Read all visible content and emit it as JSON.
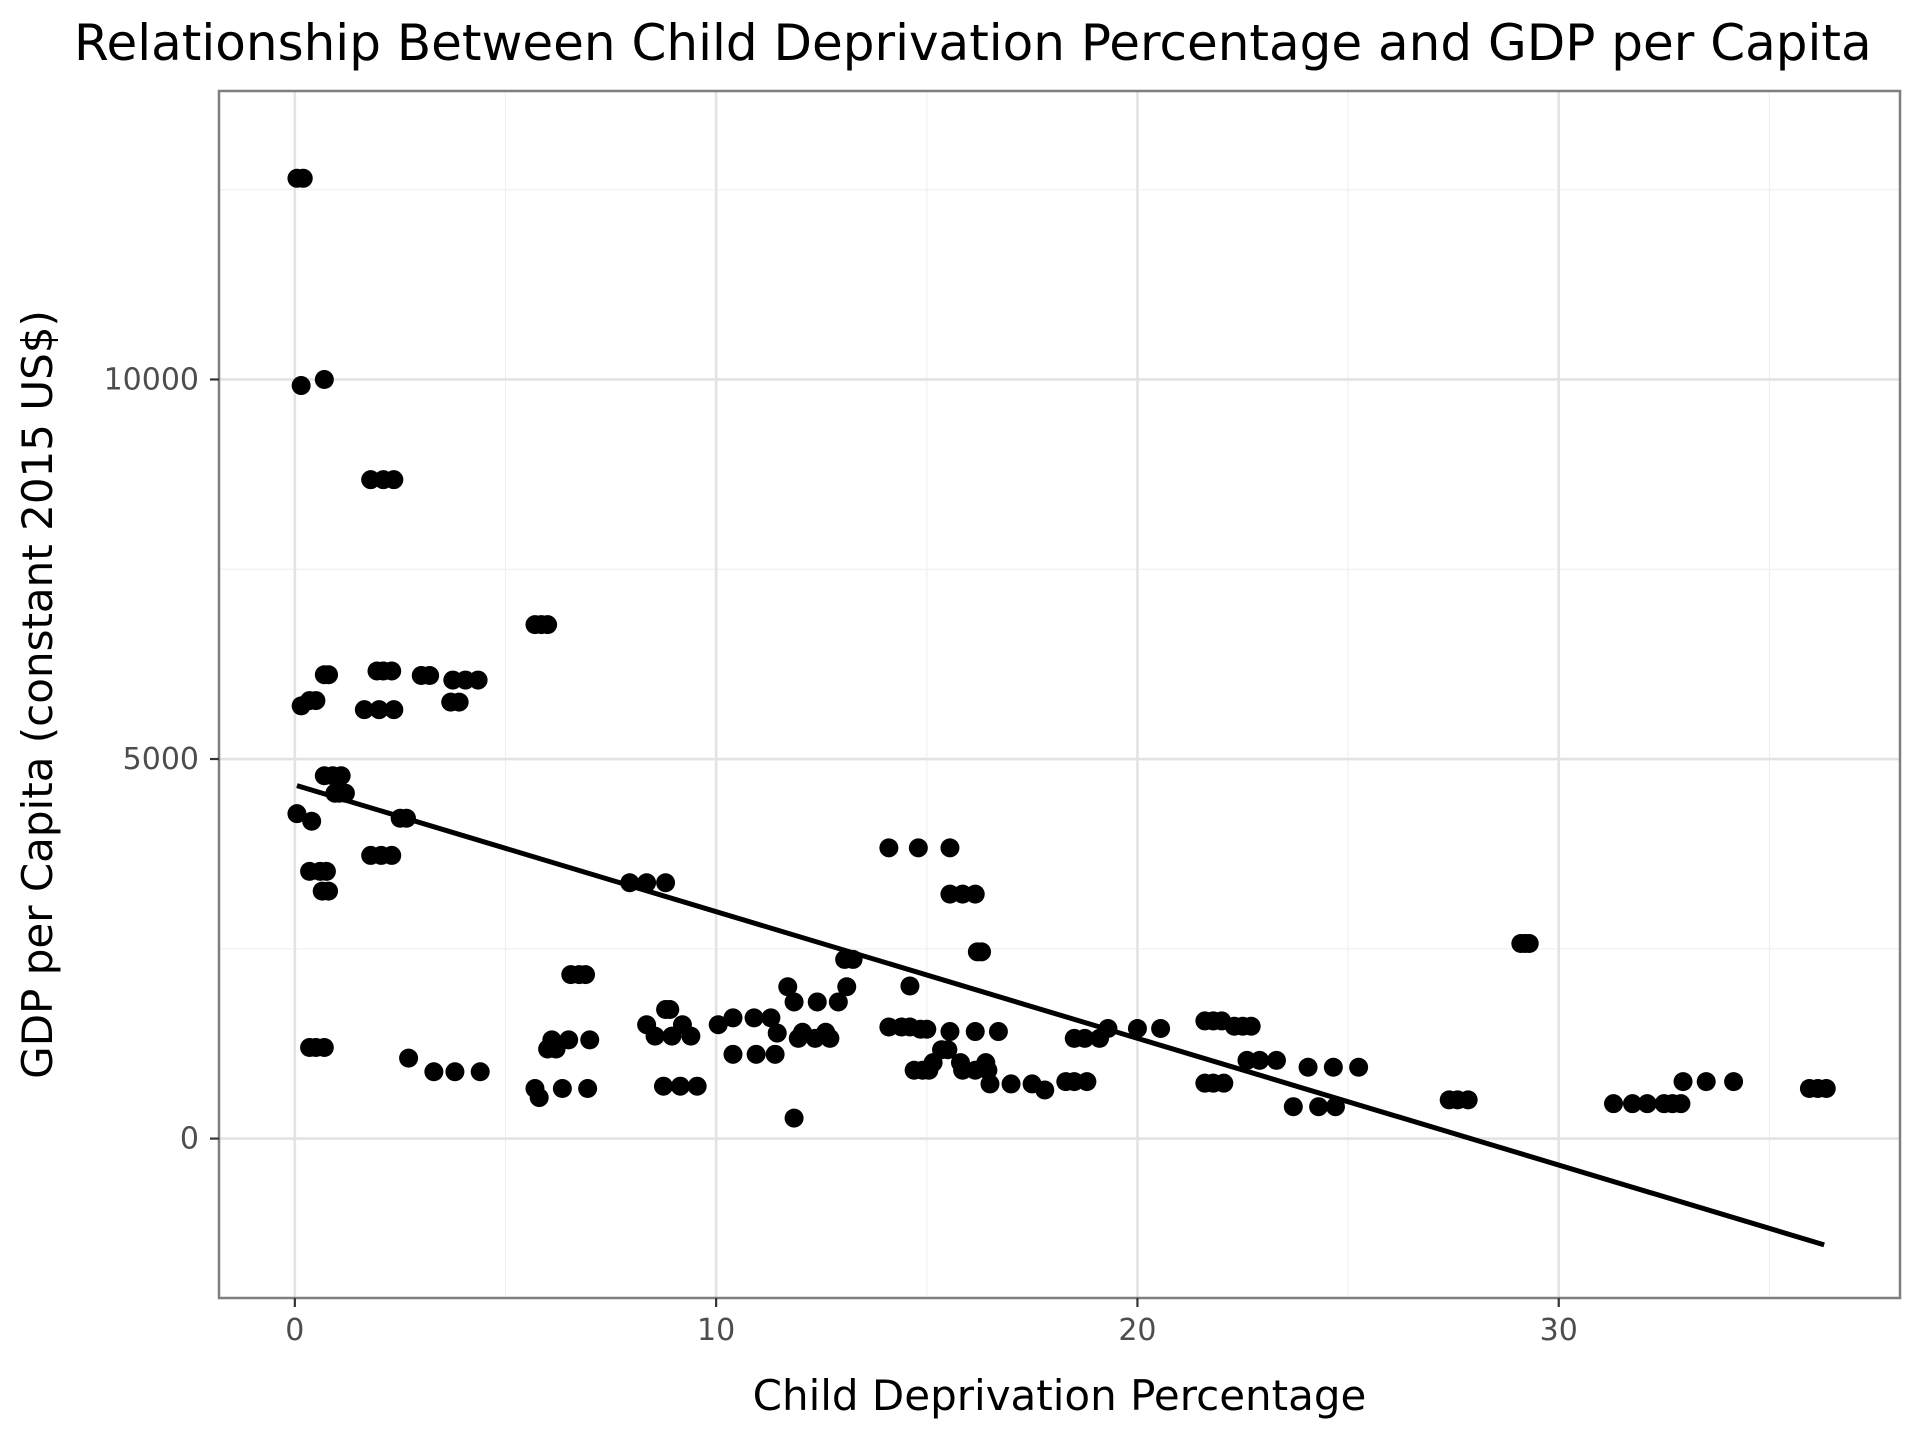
{
  "chart_data": {
    "type": "scatter",
    "title": "Relationship Between Child Deprivation Percentage and GDP per Capita",
    "xlabel": "Child Deprivation Percentage",
    "ylabel": "GDP per Capita (constant 2015 US$)",
    "xlim": [
      -1.8,
      38.1
    ],
    "ylim": [
      -2100,
      13800
    ],
    "x_ticks": [
      0,
      10,
      20,
      30
    ],
    "x_tick_labels": [
      "0",
      "10",
      "20",
      "30"
    ],
    "y_ticks": [
      0,
      5000,
      10000
    ],
    "y_tick_labels": [
      "0",
      "5000",
      "10000"
    ],
    "x_minor_ticks": [
      5,
      15,
      25,
      35
    ],
    "y_minor_ticks": [
      2500,
      7500,
      12500
    ],
    "grid": true,
    "legend": "none",
    "point_color": "#000000",
    "trend_line": {
      "type": "linear",
      "color": "#000000",
      "x": [
        0.05,
        36.3
      ],
      "y": [
        4650,
        -1400
      ]
    },
    "points": [
      [
        0.05,
        12650
      ],
      [
        0.2,
        12650
      ],
      [
        0.15,
        9920
      ],
      [
        0.7,
        10000
      ],
      [
        1.8,
        8680
      ],
      [
        2.1,
        8680
      ],
      [
        2.35,
        8680
      ],
      [
        0.15,
        5700
      ],
      [
        0.35,
        5770
      ],
      [
        0.5,
        5770
      ],
      [
        0.7,
        6110
      ],
      [
        0.8,
        6110
      ],
      [
        1.65,
        5650
      ],
      [
        2.0,
        5650
      ],
      [
        2.35,
        5650
      ],
      [
        1.95,
        6160
      ],
      [
        2.1,
        6160
      ],
      [
        2.3,
        6160
      ],
      [
        3.0,
        6100
      ],
      [
        3.2,
        6100
      ],
      [
        3.7,
        5750
      ],
      [
        3.9,
        5750
      ],
      [
        3.75,
        6040
      ],
      [
        4.05,
        6040
      ],
      [
        4.35,
        6040
      ],
      [
        5.7,
        6770
      ],
      [
        5.85,
        6770
      ],
      [
        6.0,
        6770
      ],
      [
        0.7,
        4780
      ],
      [
        0.9,
        4780
      ],
      [
        1.1,
        4780
      ],
      [
        0.95,
        4550
      ],
      [
        1.05,
        4550
      ],
      [
        1.2,
        4550
      ],
      [
        0.05,
        4280
      ],
      [
        0.4,
        4180
      ],
      [
        2.5,
        4220
      ],
      [
        2.65,
        4220
      ],
      [
        0.35,
        3520
      ],
      [
        0.6,
        3520
      ],
      [
        0.75,
        3520
      ],
      [
        0.65,
        3260
      ],
      [
        0.8,
        3260
      ],
      [
        1.8,
        3730
      ],
      [
        2.05,
        3730
      ],
      [
        2.3,
        3730
      ],
      [
        0.35,
        1200
      ],
      [
        0.5,
        1200
      ],
      [
        0.7,
        1200
      ],
      [
        2.7,
        1060
      ],
      [
        3.3,
        880
      ],
      [
        3.8,
        880
      ],
      [
        4.4,
        880
      ],
      [
        5.7,
        660
      ],
      [
        5.8,
        540
      ],
      [
        6.0,
        1180
      ],
      [
        6.1,
        1300
      ],
      [
        6.2,
        1180
      ],
      [
        6.35,
        660
      ],
      [
        6.5,
        1300
      ],
      [
        6.55,
        2160
      ],
      [
        6.75,
        2160
      ],
      [
        6.9,
        2160
      ],
      [
        6.95,
        660
      ],
      [
        7.0,
        1300
      ],
      [
        7.95,
        3370
      ],
      [
        8.35,
        3370
      ],
      [
        8.8,
        3370
      ],
      [
        8.35,
        1500
      ],
      [
        8.55,
        1350
      ],
      [
        8.8,
        1700
      ],
      [
        8.9,
        1700
      ],
      [
        8.95,
        1350
      ],
      [
        8.75,
        690
      ],
      [
        9.15,
        690
      ],
      [
        9.55,
        690
      ],
      [
        9.2,
        1500
      ],
      [
        9.4,
        1350
      ],
      [
        10.05,
        1500
      ],
      [
        10.4,
        1110
      ],
      [
        10.95,
        1110
      ],
      [
        11.4,
        1110
      ],
      [
        10.4,
        1590
      ],
      [
        10.9,
        1590
      ],
      [
        11.3,
        1590
      ],
      [
        11.45,
        1390
      ],
      [
        11.7,
        2000
      ],
      [
        11.85,
        1800
      ],
      [
        11.85,
        270
      ],
      [
        11.95,
        1320
      ],
      [
        12.05,
        1400
      ],
      [
        12.35,
        1320
      ],
      [
        12.4,
        1800
      ],
      [
        12.6,
        1400
      ],
      [
        12.7,
        1320
      ],
      [
        12.9,
        1800
      ],
      [
        13.05,
        2360
      ],
      [
        13.25,
        2360
      ],
      [
        13.1,
        2000
      ],
      [
        14.1,
        3830
      ],
      [
        14.8,
        3830
      ],
      [
        15.55,
        3830
      ],
      [
        14.1,
        1470
      ],
      [
        14.4,
        1470
      ],
      [
        14.6,
        1470
      ],
      [
        14.6,
        2010
      ],
      [
        14.7,
        900
      ],
      [
        14.85,
        1440
      ],
      [
        14.9,
        900
      ],
      [
        15.0,
        1440
      ],
      [
        15.05,
        900
      ],
      [
        15.15,
        1000
      ],
      [
        15.35,
        1170
      ],
      [
        15.5,
        1170
      ],
      [
        15.55,
        1410
      ],
      [
        15.55,
        3220
      ],
      [
        15.85,
        3220
      ],
      [
        16.15,
        3220
      ],
      [
        15.8,
        1000
      ],
      [
        15.85,
        900
      ],
      [
        16.15,
        1410
      ],
      [
        16.15,
        900
      ],
      [
        16.2,
        2460
      ],
      [
        16.3,
        2460
      ],
      [
        16.4,
        1000
      ],
      [
        16.45,
        900
      ],
      [
        16.5,
        720
      ],
      [
        16.7,
        1410
      ],
      [
        17.0,
        720
      ],
      [
        17.5,
        720
      ],
      [
        17.8,
        640
      ],
      [
        18.3,
        750
      ],
      [
        18.5,
        750
      ],
      [
        18.8,
        750
      ],
      [
        18.5,
        1320
      ],
      [
        18.75,
        1320
      ],
      [
        19.1,
        1320
      ],
      [
        19.3,
        1450
      ],
      [
        20.0,
        1450
      ],
      [
        20.55,
        1450
      ],
      [
        21.6,
        1550
      ],
      [
        21.8,
        1550
      ],
      [
        22.0,
        1550
      ],
      [
        21.6,
        730
      ],
      [
        21.8,
        730
      ],
      [
        22.05,
        730
      ],
      [
        22.3,
        1480
      ],
      [
        22.5,
        1480
      ],
      [
        22.7,
        1480
      ],
      [
        22.6,
        1030
      ],
      [
        22.9,
        1030
      ],
      [
        23.3,
        1030
      ],
      [
        23.7,
        420
      ],
      [
        24.05,
        940
      ],
      [
        24.3,
        420
      ],
      [
        24.65,
        940
      ],
      [
        24.7,
        420
      ],
      [
        25.25,
        940
      ],
      [
        27.4,
        510
      ],
      [
        27.6,
        510
      ],
      [
        27.85,
        510
      ],
      [
        29.1,
        2570
      ],
      [
        29.2,
        2570
      ],
      [
        29.3,
        2570
      ],
      [
        31.3,
        460
      ],
      [
        31.75,
        460
      ],
      [
        32.1,
        460
      ],
      [
        32.5,
        460
      ],
      [
        32.7,
        460
      ],
      [
        32.9,
        460
      ],
      [
        32.95,
        750
      ],
      [
        33.5,
        750
      ],
      [
        34.15,
        750
      ],
      [
        35.95,
        660
      ],
      [
        36.15,
        660
      ],
      [
        36.35,
        660
      ]
    ]
  }
}
